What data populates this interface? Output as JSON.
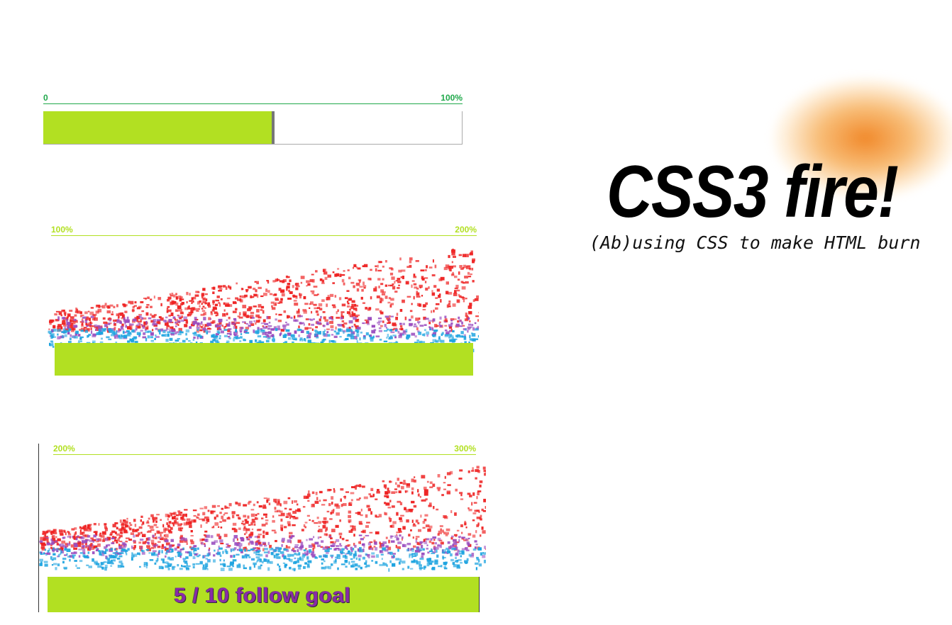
{
  "colors": {
    "bar_fill": "#b2e022",
    "scale_primary": "#1fa84a",
    "scale_secondary": "#b2e022",
    "flame_red": "#ee2222",
    "flame_purple": "#9a4cbf",
    "flame_blue": "#1ea4e0",
    "goal_text": "#8a2aa8"
  },
  "meters": [
    {
      "scale_low": "0",
      "scale_high": "100%",
      "fill_fraction": 0.545,
      "flames": false
    },
    {
      "scale_low": "100%",
      "scale_high": "200%",
      "fill_fraction": 1.0,
      "flames": true
    },
    {
      "scale_low": "200%",
      "scale_high": "300%",
      "fill_fraction": 1.0,
      "flames": true,
      "goal_text": "5 / 10 follow goal"
    }
  ],
  "hero": {
    "title": "CSS3 fire!",
    "subtitle": "(Ab)using CSS to make HTML burn"
  }
}
